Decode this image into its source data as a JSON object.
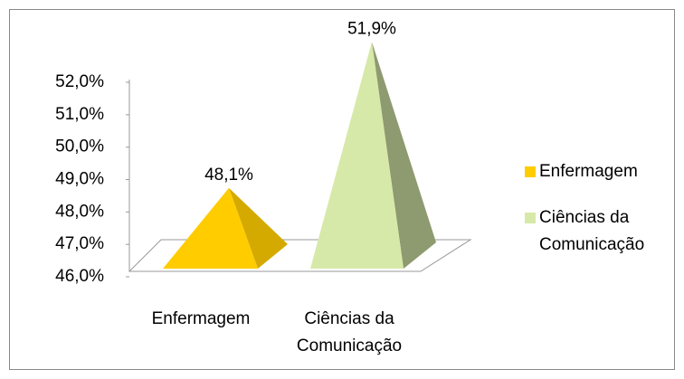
{
  "chart_data": {
    "type": "pyramid3d",
    "categories": [
      "Enfermagem",
      "Ciências da Comunicação"
    ],
    "values": [
      48.1,
      51.9
    ],
    "value_labels": [
      "48,1%",
      "51,9%"
    ],
    "colors": [
      "#ffcc00",
      "#d7e9a8"
    ],
    "ylim": [
      46,
      52
    ],
    "yticks": [
      {
        "value": 46,
        "label": "46,0%"
      },
      {
        "value": 47,
        "label": "47,0%"
      },
      {
        "value": 48,
        "label": "48,0%"
      },
      {
        "value": 49,
        "label": "49,0%"
      },
      {
        "value": 50,
        "label": "50,0%"
      },
      {
        "value": 51,
        "label": "51,0%"
      },
      {
        "value": 52,
        "label": "52,0%"
      }
    ],
    "legend": "right"
  }
}
